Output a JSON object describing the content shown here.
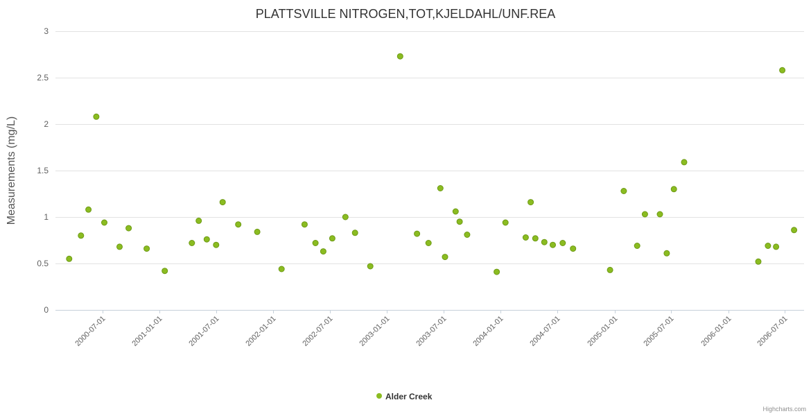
{
  "credits": "Highcharts.com",
  "chart_data": {
    "type": "scatter",
    "title": "PLATTSVILLE NITROGEN,TOT,KJELDAHL/UNF.REA",
    "xlabel": "",
    "ylabel": "Measurements (mg/L)",
    "ylim": [
      0,
      3
    ],
    "yticks": [
      0,
      0.5,
      1,
      1.5,
      2,
      2.5,
      3
    ],
    "xlim": [
      "2000-02-01",
      "2006-09-01"
    ],
    "xticks": [
      "2000-07-01",
      "2001-01-01",
      "2001-07-01",
      "2002-01-01",
      "2002-07-01",
      "2003-01-01",
      "2003-07-01",
      "2004-01-01",
      "2004-07-01",
      "2005-01-01",
      "2005-07-01",
      "2006-01-01",
      "2006-07-01"
    ],
    "grid": true,
    "legend_position": "bottom",
    "series": [
      {
        "name": "Alder Creek",
        "color": "#8bbc21",
        "points": [
          [
            "2000-03-16",
            0.55
          ],
          [
            "2000-04-23",
            0.8
          ],
          [
            "2000-05-17",
            1.08
          ],
          [
            "2000-06-11",
            2.08
          ],
          [
            "2000-07-07",
            0.94
          ],
          [
            "2000-08-25",
            0.68
          ],
          [
            "2000-09-23",
            0.88
          ],
          [
            "2000-11-20",
            0.66
          ],
          [
            "2001-01-17",
            0.42
          ],
          [
            "2001-04-14",
            0.72
          ],
          [
            "2001-05-06",
            0.96
          ],
          [
            "2001-06-01",
            0.76
          ],
          [
            "2001-07-01",
            0.7
          ],
          [
            "2001-07-22",
            1.16
          ],
          [
            "2001-09-10",
            0.92
          ],
          [
            "2001-11-10",
            0.84
          ],
          [
            "2002-01-27",
            0.44
          ],
          [
            "2002-04-11",
            0.92
          ],
          [
            "2002-05-16",
            0.72
          ],
          [
            "2002-06-10",
            0.63
          ],
          [
            "2002-07-09",
            0.77
          ],
          [
            "2002-08-20",
            1.0
          ],
          [
            "2002-09-20",
            0.83
          ],
          [
            "2002-11-08",
            0.47
          ],
          [
            "2003-02-12",
            2.73
          ],
          [
            "2003-04-07",
            0.82
          ],
          [
            "2003-05-14",
            0.72
          ],
          [
            "2003-06-21",
            1.31
          ],
          [
            "2003-07-06",
            0.57
          ],
          [
            "2003-08-09",
            1.06
          ],
          [
            "2003-08-22",
            0.95
          ],
          [
            "2003-09-15",
            0.81
          ],
          [
            "2003-12-19",
            0.41
          ],
          [
            "2004-01-16",
            0.94
          ],
          [
            "2004-03-21",
            0.78
          ],
          [
            "2004-04-06",
            1.16
          ],
          [
            "2004-04-21",
            0.77
          ],
          [
            "2004-05-20",
            0.73
          ],
          [
            "2004-06-16",
            0.7
          ],
          [
            "2004-07-18",
            0.72
          ],
          [
            "2004-08-20",
            0.66
          ],
          [
            "2004-12-17",
            0.43
          ],
          [
            "2005-01-30",
            1.28
          ],
          [
            "2005-03-14",
            0.69
          ],
          [
            "2005-04-08",
            1.03
          ],
          [
            "2005-05-26",
            1.03
          ],
          [
            "2005-06-17",
            0.61
          ],
          [
            "2005-07-10",
            1.3
          ],
          [
            "2005-08-12",
            1.59
          ],
          [
            "2006-04-07",
            0.52
          ],
          [
            "2006-05-08",
            0.69
          ],
          [
            "2006-06-03",
            0.68
          ],
          [
            "2006-06-23",
            2.58
          ],
          [
            "2006-07-31",
            0.86
          ]
        ]
      }
    ]
  }
}
